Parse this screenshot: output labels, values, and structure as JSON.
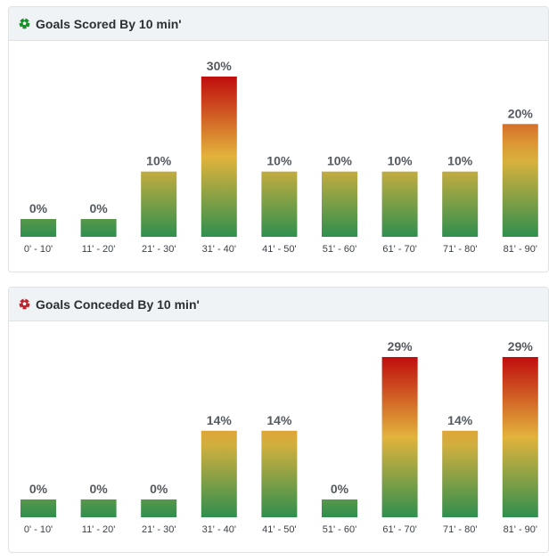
{
  "colors": {
    "low": "#2f8f4e",
    "mid": "#e2b33c",
    "high": "#c00d0d",
    "scored_icon": "#1a8f2a",
    "conceded_icon": "#c0252d"
  },
  "chart_data": [
    {
      "type": "bar",
      "title": "Goals Scored By 10 min'",
      "icon": "soccer-ball-green-icon",
      "categories": [
        "0' - 10'",
        "11' - 20'",
        "21' - 30'",
        "31' - 40'",
        "41' - 50'",
        "51' - 60'",
        "61' - 70'",
        "71' - 80'",
        "81' - 90'"
      ],
      "values": [
        0,
        0,
        10,
        30,
        10,
        10,
        10,
        10,
        20
      ],
      "value_labels": [
        "0%",
        "0%",
        "10%",
        "30%",
        "10%",
        "10%",
        "10%",
        "10%",
        "20%"
      ],
      "ylim": [
        0,
        30
      ],
      "grid": false
    },
    {
      "type": "bar",
      "title": "Goals Conceded By 10 min'",
      "icon": "soccer-ball-red-icon",
      "categories": [
        "0' - 10'",
        "11' - 20'",
        "21' - 30'",
        "31' - 40'",
        "41' - 50'",
        "51' - 60'",
        "61' - 70'",
        "71' - 80'",
        "81' - 90'"
      ],
      "values": [
        0,
        0,
        0,
        14,
        14,
        0,
        29,
        14,
        29
      ],
      "value_labels": [
        "0%",
        "0%",
        "0%",
        "14%",
        "14%",
        "0%",
        "29%",
        "14%",
        "29%"
      ],
      "ylim": [
        0,
        29
      ],
      "grid": false
    }
  ]
}
